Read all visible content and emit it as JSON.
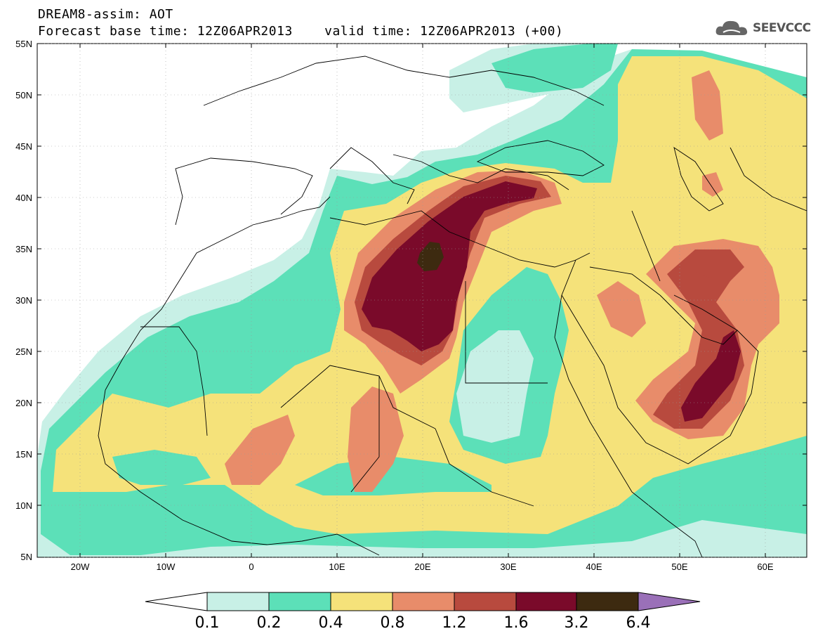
{
  "title": {
    "line1": "DREAM8-assim: AOT",
    "line2": "Forecast base time: 12Z06APR2013    valid time: 12Z06APR2013 (+00)"
  },
  "logo": {
    "text": "SEEVCCC",
    "icon": "cloud-icon"
  },
  "axes": {
    "lat_labels": [
      "55N",
      "50N",
      "45N",
      "40N",
      "35N",
      "30N",
      "25N",
      "20N",
      "15N",
      "10N",
      "5N"
    ],
    "lon_labels": [
      "20W",
      "10W",
      "0",
      "10E",
      "20E",
      "30E",
      "40E",
      "50E",
      "60E"
    ]
  },
  "colorbar": {
    "labels": [
      "0.1",
      "0.2",
      "0.4",
      "0.8",
      "1.2",
      "1.6",
      "3.2",
      "6.4"
    ],
    "colors": {
      "below": "#ffffff",
      "c1": "#c8f0e6",
      "c2": "#5ce0b8",
      "c3": "#f5e27a",
      "c4": "#e88c6a",
      "c5": "#b84a3e",
      "c6": "#7a0a2a",
      "c7": "#3d2a10",
      "above": "#9a70b8"
    }
  }
}
